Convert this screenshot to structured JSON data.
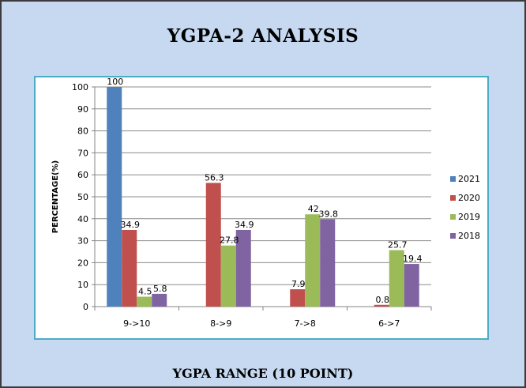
{
  "chart_data": {
    "type": "bar",
    "title": "YGPA-2 ANALYSIS",
    "xlabel": "YGPA RANGE (10 POINT)",
    "ylabel": "PERCENTAGE(%)",
    "categories": [
      "9->10",
      "8->9",
      "7->8",
      "6->7"
    ],
    "ylim": [
      0,
      100
    ],
    "yticks": [
      "0",
      "10",
      "20",
      "30",
      "40",
      "50",
      "60",
      "70",
      "80",
      "90",
      "100"
    ],
    "grid": true,
    "legend_position": "right",
    "series": [
      {
        "name": "2021",
        "color": "#4f81bd",
        "values": [
          100,
          null,
          null,
          null
        ],
        "labels": [
          "100",
          "",
          "",
          ""
        ]
      },
      {
        "name": "2020",
        "color": "#c0504d",
        "values": [
          34.9,
          56.3,
          7.9,
          0.8
        ],
        "labels": [
          "34.9",
          "56.3",
          "7.9",
          "0.8"
        ]
      },
      {
        "name": "2019",
        "color": "#9bbb59",
        "values": [
          4.5,
          27.8,
          42,
          25.7
        ],
        "labels": [
          "4.5",
          "27.8",
          "42",
          "25.7"
        ]
      },
      {
        "name": "2018",
        "color": "#8064a2",
        "values": [
          5.8,
          34.9,
          39.8,
          19.4
        ],
        "labels": [
          "5.8",
          "34.9",
          "39.8",
          "19.4"
        ]
      }
    ]
  }
}
